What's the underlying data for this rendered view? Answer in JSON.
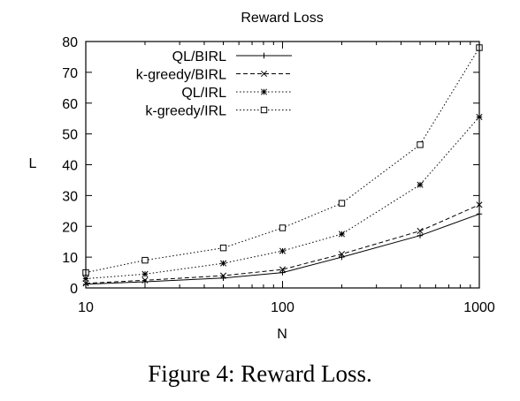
{
  "caption": "Figure 4: Reward Loss.",
  "chart_data": {
    "type": "line",
    "title": "Reward Loss",
    "xlabel": "N",
    "ylabel": "L",
    "xscale": "log",
    "xlim": [
      10,
      1000
    ],
    "ylim": [
      0,
      80
    ],
    "xticks": [
      10,
      100,
      1000
    ],
    "yticks": [
      0,
      10,
      20,
      30,
      40,
      50,
      60,
      70,
      80
    ],
    "legend_position": "top-left",
    "grid": false,
    "x": [
      10,
      20,
      50,
      100,
      200,
      500,
      1000
    ],
    "series": [
      {
        "name": "QL/BIRL",
        "marker": "plus",
        "line_style": "solid",
        "values": [
          1.2,
          2.0,
          3.2,
          5.0,
          10.0,
          17.0,
          24.0
        ]
      },
      {
        "name": "k-greedy/BIRL",
        "marker": "cross",
        "line_style": "dashed",
        "values": [
          1.5,
          2.5,
          4.0,
          6.0,
          11.0,
          18.5,
          27.0
        ]
      },
      {
        "name": "QL/IRL",
        "marker": "star",
        "line_style": "dotted",
        "values": [
          3.0,
          4.5,
          8.0,
          12.0,
          17.5,
          33.5,
          55.5
        ]
      },
      {
        "name": "k-greedy/IRL",
        "marker": "square",
        "line_style": "dotted",
        "values": [
          5.0,
          9.0,
          13.0,
          19.5,
          27.5,
          46.5,
          78.0
        ]
      }
    ]
  }
}
